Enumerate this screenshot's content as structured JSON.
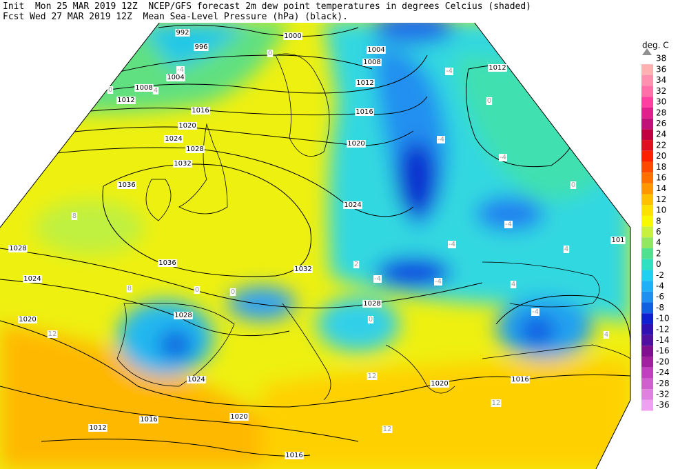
{
  "header": {
    "line1": "Init  Mon 25 MAR 2019 12Z  NCEP/GFS forecast 2m dew point temperatures in degrees Celcius (shaded)",
    "line2": "Fcst Wed 27 MAR 2019 12Z  Mean Sea-Level Pressure (hPa) (black)."
  },
  "legend": {
    "title": "deg. C",
    "top_label": 38,
    "levels": [
      {
        "label": 36,
        "color": "#ffb0b0"
      },
      {
        "label": 34,
        "color": "#ff90b0"
      },
      {
        "label": 32,
        "color": "#ff70a8"
      },
      {
        "label": 30,
        "color": "#ff40a0"
      },
      {
        "label": 28,
        "color": "#e0208c"
      },
      {
        "label": 26,
        "color": "#c0107a"
      },
      {
        "label": 24,
        "color": "#c00040"
      },
      {
        "label": 22,
        "color": "#e01020"
      },
      {
        "label": 20,
        "color": "#ff2000"
      },
      {
        "label": 18,
        "color": "#ff4800"
      },
      {
        "label": 16,
        "color": "#ff7000"
      },
      {
        "label": 14,
        "color": "#ff9800"
      },
      {
        "label": 12,
        "color": "#ffc000"
      },
      {
        "label": 10,
        "color": "#ffe000"
      },
      {
        "label": 8,
        "color": "#f8f800"
      },
      {
        "label": 6,
        "color": "#c8f040"
      },
      {
        "label": 4,
        "color": "#90e860"
      },
      {
        "label": 2,
        "color": "#50e090"
      },
      {
        "label": 0,
        "color": "#30e0c0"
      },
      {
        "label": -2,
        "color": "#20d0f0"
      },
      {
        "label": -4,
        "color": "#20b0f8"
      },
      {
        "label": -6,
        "color": "#2090f0"
      },
      {
        "label": -8,
        "color": "#1060e0"
      },
      {
        "label": -10,
        "color": "#1020d0"
      },
      {
        "label": -12,
        "color": "#3010b0"
      },
      {
        "label": -14,
        "color": "#5010a0"
      },
      {
        "label": -16,
        "color": "#801090"
      },
      {
        "label": -20,
        "color": "#a020a0"
      },
      {
        "label": -24,
        "color": "#c040c0"
      },
      {
        "label": -28,
        "color": "#d060d0"
      },
      {
        "label": -32,
        "color": "#e080e0"
      },
      {
        "label": -36,
        "color": "#f0a0f0"
      }
    ]
  },
  "map": {
    "isobar_labels": [
      "992",
      "996",
      "1000",
      "1004",
      "1004",
      "1008",
      "1008",
      "1012",
      "1012",
      "1012",
      "1016",
      "1016",
      "1020",
      "1020",
      "1024",
      "1024",
      "1028",
      "1032",
      "1036",
      "1036",
      "1032",
      "1028",
      "1024",
      "1020",
      "1028",
      "1028",
      "1024",
      "1020",
      "1016",
      "1020",
      "1016",
      "1012",
      "1016",
      "101"
    ],
    "temp_labels": [
      "0",
      "4",
      "-4",
      "0",
      "-4",
      "0",
      "-4",
      "-4",
      "0",
      "-4",
      "-4",
      "4",
      "2",
      "-4",
      "-4",
      "4",
      "-4",
      "0",
      "4",
      "12",
      "8",
      "8",
      "0",
      "0",
      "12",
      "12",
      "12"
    ]
  }
}
